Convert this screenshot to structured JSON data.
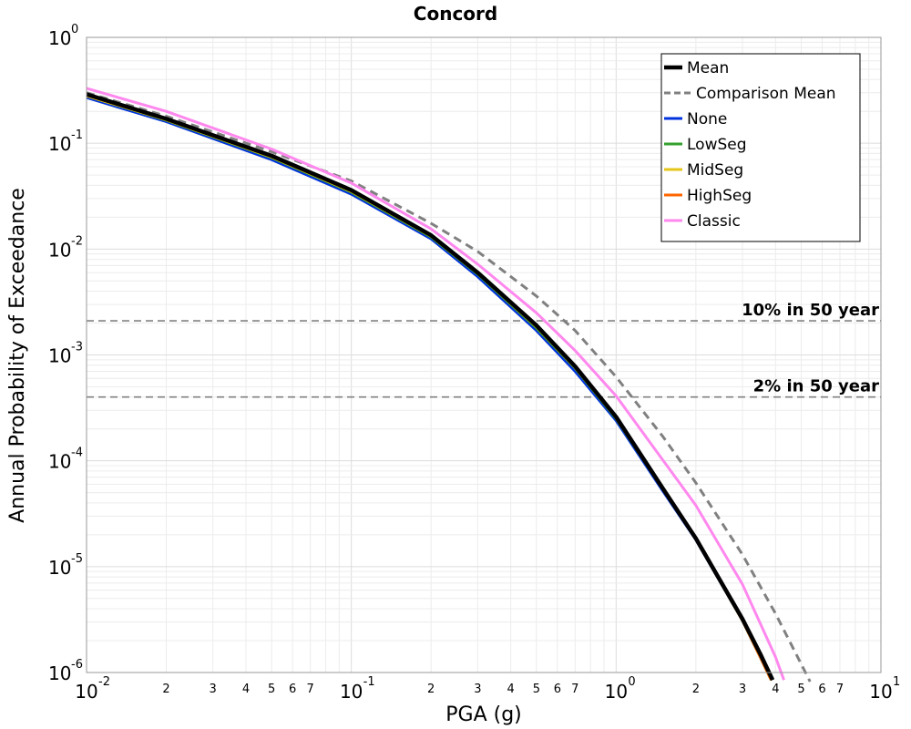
{
  "chart_data": {
    "type": "line",
    "title": "Concord",
    "xlabel": "PGA (g)",
    "ylabel": "Annual Probability of Exceedance",
    "xscale": "log",
    "yscale": "log",
    "xlim": [
      0.01,
      10
    ],
    "ylim": [
      1e-06,
      1
    ],
    "grid": true,
    "legend_position": "top-right",
    "x_major_ticks": [
      {
        "value": 0.01,
        "base": "10",
        "exp": "-2"
      },
      {
        "value": 0.1,
        "base": "10",
        "exp": "-1"
      },
      {
        "value": 1,
        "base": "10",
        "exp": "0"
      },
      {
        "value": 10,
        "base": "10",
        "exp": "1"
      }
    ],
    "x_minor_ticks": [
      {
        "value": 0.02,
        "label": "2"
      },
      {
        "value": 0.03,
        "label": "3"
      },
      {
        "value": 0.04,
        "label": "4"
      },
      {
        "value": 0.05,
        "label": "5"
      },
      {
        "value": 0.06,
        "label": "6"
      },
      {
        "value": 0.07,
        "label": "7"
      },
      {
        "value": 0.2,
        "label": "2"
      },
      {
        "value": 0.3,
        "label": "3"
      },
      {
        "value": 0.4,
        "label": "4"
      },
      {
        "value": 0.5,
        "label": "5"
      },
      {
        "value": 0.6,
        "label": "6"
      },
      {
        "value": 0.7,
        "label": "7"
      },
      {
        "value": 2,
        "label": "2"
      },
      {
        "value": 3,
        "label": "3"
      },
      {
        "value": 4,
        "label": "4"
      },
      {
        "value": 5,
        "label": "5"
      },
      {
        "value": 6,
        "label": "6"
      },
      {
        "value": 7,
        "label": "7"
      }
    ],
    "y_major_ticks": [
      {
        "value": 1,
        "base": "10",
        "exp": "0"
      },
      {
        "value": 0.1,
        "base": "10",
        "exp": "-1"
      },
      {
        "value": 0.01,
        "base": "10",
        "exp": "-2"
      },
      {
        "value": 0.001,
        "base": "10",
        "exp": "-3"
      },
      {
        "value": 0.0001,
        "base": "10",
        "exp": "-4"
      },
      {
        "value": 1e-05,
        "base": "10",
        "exp": "-5"
      },
      {
        "value": 1e-06,
        "base": "10",
        "exp": "-6"
      }
    ],
    "reference_lines": [
      {
        "y": 0.0021,
        "label": "10% in 50 year",
        "color": "#808080",
        "dash": true
      },
      {
        "y": 0.0004,
        "label": "2% in 50 year",
        "color": "#808080",
        "dash": true
      }
    ],
    "series": [
      {
        "name": "Mean",
        "color": "#000000",
        "dash": false,
        "emphasis": true,
        "x": [
          0.01,
          0.02,
          0.05,
          0.1,
          0.2,
          0.3,
          0.5,
          0.7,
          1.0,
          1.5,
          2.0,
          3.0,
          3.5,
          3.9
        ],
        "y": [
          0.29,
          0.17,
          0.076,
          0.036,
          0.0135,
          0.006,
          0.0019,
          0.00078,
          0.00026,
          5.5e-05,
          1.85e-05,
          3.2e-06,
          1.5e-06,
          8.5e-07
        ]
      },
      {
        "name": "Comparison Mean",
        "color": "#808080",
        "dash": true,
        "emphasis": false,
        "x": [
          0.01,
          0.02,
          0.05,
          0.1,
          0.2,
          0.3,
          0.5,
          0.7,
          1.0,
          1.5,
          2.0,
          3.0,
          4.0,
          5.0,
          5.4
        ],
        "y": [
          0.3,
          0.18,
          0.083,
          0.044,
          0.0175,
          0.0095,
          0.0036,
          0.0017,
          0.00062,
          0.00017,
          6.2e-05,
          1.3e-05,
          3.6e-06,
          1.2e-06,
          8.2e-07
        ]
      },
      {
        "name": "None",
        "color": "#0033dd",
        "dash": false,
        "emphasis": false,
        "x": [
          0.01,
          0.02,
          0.05,
          0.1,
          0.2,
          0.3,
          0.5,
          0.7,
          1.0,
          1.5,
          2.0,
          3.0,
          3.5,
          3.85
        ],
        "y": [
          0.27,
          0.16,
          0.07,
          0.033,
          0.0125,
          0.0055,
          0.0017,
          0.0007,
          0.00024,
          5.2e-05,
          1.8e-05,
          3.1e-06,
          1.4e-06,
          8.5e-07
        ]
      },
      {
        "name": "LowSeg",
        "color": "#33a02c",
        "dash": false,
        "emphasis": false,
        "x": [
          0.01,
          0.02,
          0.05,
          0.1,
          0.2,
          0.3,
          0.5,
          0.7,
          1.0,
          1.5,
          2.0,
          3.0,
          3.5,
          3.85
        ],
        "y": [
          0.28,
          0.165,
          0.073,
          0.0345,
          0.013,
          0.0058,
          0.0018,
          0.00075,
          0.00025,
          5.4e-05,
          1.82e-05,
          3.1e-06,
          1.4e-06,
          8.5e-07
        ]
      },
      {
        "name": "MidSeg",
        "color": "#e6c619",
        "dash": false,
        "emphasis": false,
        "x": [
          0.01,
          0.02,
          0.05,
          0.1,
          0.2,
          0.3,
          0.5,
          0.7,
          1.0,
          1.5,
          2.0,
          3.0,
          3.5,
          3.85
        ],
        "y": [
          0.28,
          0.166,
          0.074,
          0.035,
          0.0132,
          0.0059,
          0.00185,
          0.00076,
          0.000255,
          5.4e-05,
          1.83e-05,
          3.1e-06,
          1.4e-06,
          8.5e-07
        ]
      },
      {
        "name": "HighSeg",
        "color": "#ff6600",
        "dash": false,
        "emphasis": false,
        "x": [
          0.01,
          0.02,
          0.05,
          0.1,
          0.2,
          0.3,
          0.5,
          0.7,
          1.0,
          1.5,
          2.0,
          3.0,
          3.5,
          3.85
        ],
        "y": [
          0.285,
          0.168,
          0.075,
          0.0355,
          0.0134,
          0.006,
          0.0019,
          0.00077,
          0.000258,
          5.5e-05,
          1.84e-05,
          3.1e-06,
          1.4e-06,
          8.5e-07
        ]
      },
      {
        "name": "Classic",
        "color": "#ff88ee",
        "dash": false,
        "emphasis": false,
        "x": [
          0.01,
          0.02,
          0.05,
          0.1,
          0.2,
          0.3,
          0.5,
          0.7,
          1.0,
          1.5,
          2.0,
          3.0,
          4.0,
          4.3
        ],
        "y": [
          0.33,
          0.2,
          0.088,
          0.042,
          0.0155,
          0.0072,
          0.0025,
          0.0011,
          0.00041,
          0.000102,
          3.8e-05,
          6.8e-06,
          1.4e-06,
          8.5e-07
        ]
      }
    ]
  }
}
